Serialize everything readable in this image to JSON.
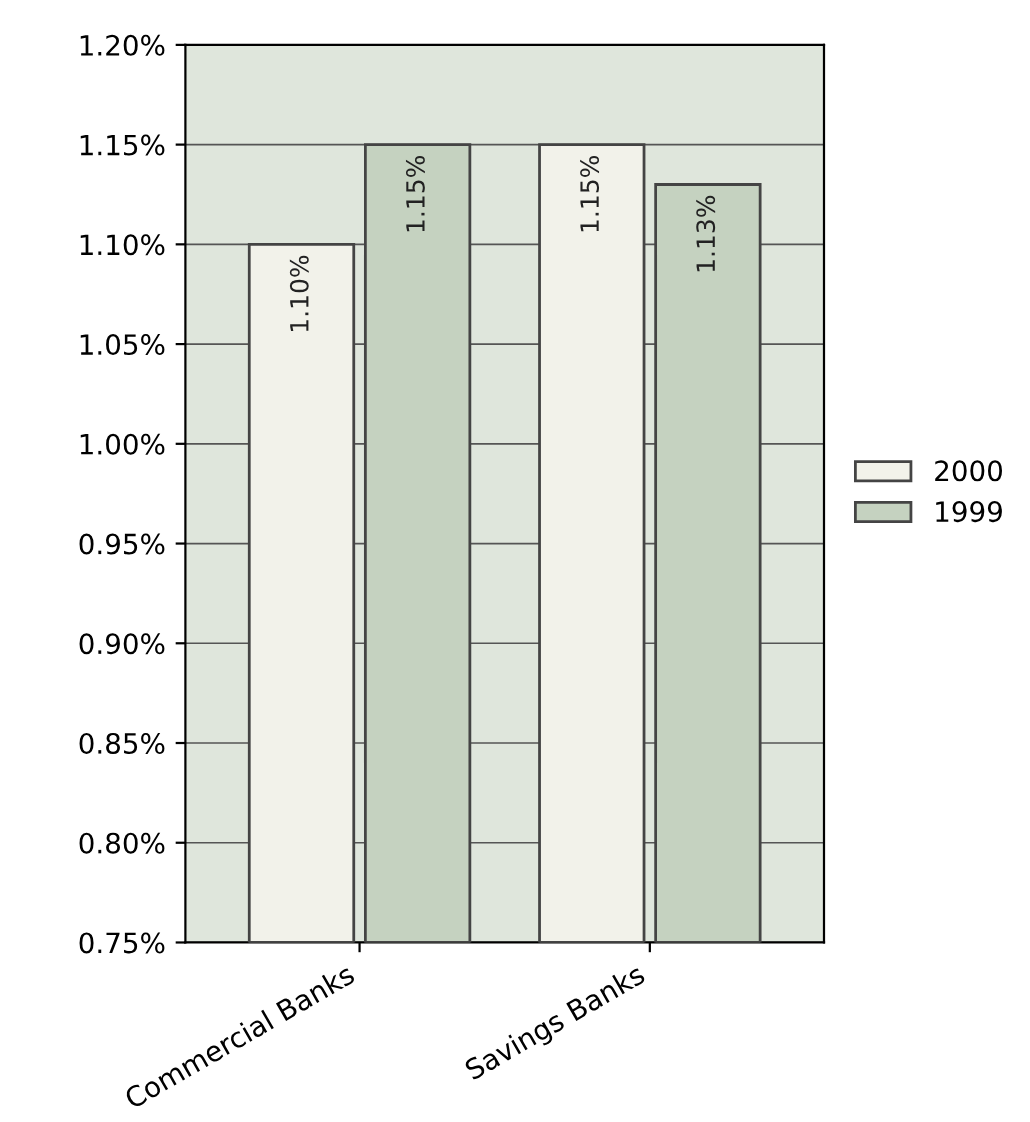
{
  "chart_data": {
    "type": "bar",
    "categories": [
      "Commercial Banks",
      "Savings Banks"
    ],
    "series": [
      {
        "name": "2000",
        "color": "#f2f2ea",
        "values": [
          1.1,
          1.15
        ],
        "value_labels": [
          "1.10%",
          "1.15%"
        ]
      },
      {
        "name": "1999",
        "color": "#c5d2c0",
        "values": [
          1.15,
          1.13
        ],
        "value_labels": [
          "1.15%",
          "1.13%"
        ]
      }
    ],
    "ylim": [
      0.75,
      1.2
    ],
    "yticks": [
      {
        "value": 0.75,
        "label": "0.75%"
      },
      {
        "value": 0.8,
        "label": "0.80%"
      },
      {
        "value": 0.85,
        "label": "0.85%"
      },
      {
        "value": 0.9,
        "label": "0.90%"
      },
      {
        "value": 0.95,
        "label": "0.95%"
      },
      {
        "value": 1.0,
        "label": "1.00%"
      },
      {
        "value": 1.05,
        "label": "1.05%"
      },
      {
        "value": 1.1,
        "label": "1.10%"
      },
      {
        "value": 1.15,
        "label": "1.15%"
      },
      {
        "value": 1.2,
        "label": "1.20%"
      }
    ],
    "grid": "y",
    "legend": "right"
  }
}
